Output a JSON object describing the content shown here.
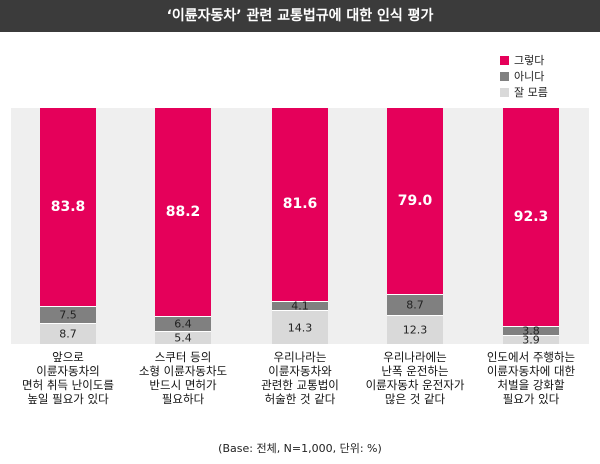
{
  "title": "‘이륜자동차’ 관련 교통법규에 대한 인식 평가",
  "legend": [
    {
      "label": "그렇다",
      "color": "#e5005a"
    },
    {
      "label": "아니다",
      "color": "#808080"
    },
    {
      "label": "잘 모름",
      "color": "#d9d9d9"
    }
  ],
  "chart_data": {
    "type": "bar",
    "stacked": true,
    "orientation": "vertical",
    "percent_stacked": true,
    "title": "‘이륜자동차’ 관련 교통법규에 대한 인식 평가",
    "categories": [
      "앞으로\n이륜자동차의\n면허 취득 난이도를\n높일 필요가 있다",
      "스쿠터 등의\n소형 이륜자동차도\n반드시 면허가\n필요하다",
      "우리나라는\n이륜자동차와\n관련한 교통법이\n허술한 것 같다",
      "우리나라에는\n난폭 운전하는\n이륜자동차 운전자가\n많은 것 같다",
      "인도에서 주행하는\n이륜자동차에 대한\n처벌을 강화할\n필요가 있다"
    ],
    "series": [
      {
        "name": "그렇다",
        "color": "#e5005a",
        "values": [
          83.8,
          88.2,
          81.6,
          79.0,
          92.3
        ]
      },
      {
        "name": "아니다",
        "color": "#808080",
        "values": [
          7.5,
          6.4,
          4.1,
          8.7,
          3.8
        ]
      },
      {
        "name": "잘 모름",
        "color": "#d9d9d9",
        "values": [
          8.7,
          5.4,
          14.3,
          12.3,
          3.9
        ]
      }
    ],
    "value_labels": [
      [
        "83.8",
        "88.2",
        "81.6",
        "79.0",
        "92.3"
      ],
      [
        "7.5",
        "6.4",
        "4.1",
        "8.7",
        "3.8"
      ],
      [
        "8.7",
        "5.4",
        "14.3",
        "12.3",
        "3.9"
      ]
    ],
    "ylim": [
      0,
      100
    ],
    "legend_position": "top-right",
    "grid": false
  },
  "footnote": "(Base: 전체, N=1,000, 단위: %)"
}
